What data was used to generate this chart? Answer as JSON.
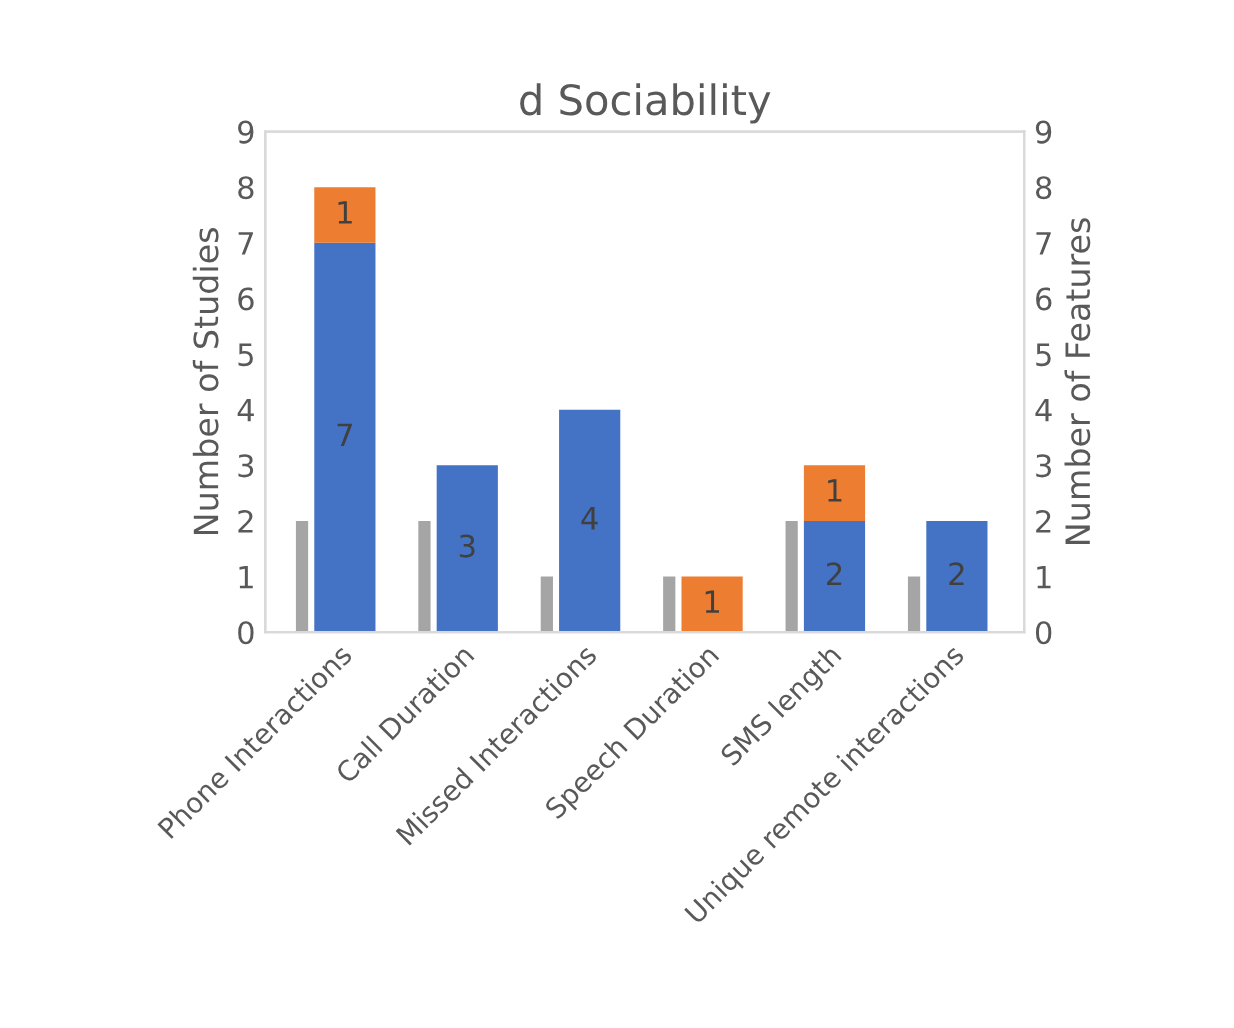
{
  "chart_data": {
    "type": "bar",
    "title": "d Sociability",
    "ylabel": "Number of Studies",
    "y2label": "Number of Features",
    "categories": [
      "Phone Interactions",
      "Call Duration",
      "Missed Interactions",
      "Speech Duration",
      "SMS length",
      "Unique remote interactions"
    ],
    "stacked": true,
    "ylim": [
      0,
      9
    ],
    "yticks": [
      0,
      1,
      2,
      3,
      4,
      5,
      6,
      7,
      8,
      9
    ],
    "y2lim": [
      0,
      9
    ],
    "y2ticks": [
      0,
      1,
      2,
      3,
      4,
      5,
      6,
      7,
      8,
      9
    ],
    "grid": false,
    "legend": false,
    "series": [
      {
        "axis": "y",
        "color": "#a5a5a5",
        "values": [
          2,
          2,
          1,
          1,
          2,
          1
        ]
      },
      {
        "axis": "y2",
        "color": "#4472c4",
        "values": [
          7,
          3,
          4,
          null,
          2,
          2
        ],
        "value_labels": [
          "7",
          "3",
          "4",
          null,
          "2",
          "2"
        ]
      },
      {
        "axis": "y2",
        "color": "#ed7d31",
        "values": [
          1,
          null,
          null,
          1,
          1,
          null
        ],
        "value_labels": [
          "1",
          null,
          null,
          "1",
          "1",
          null
        ]
      }
    ]
  }
}
